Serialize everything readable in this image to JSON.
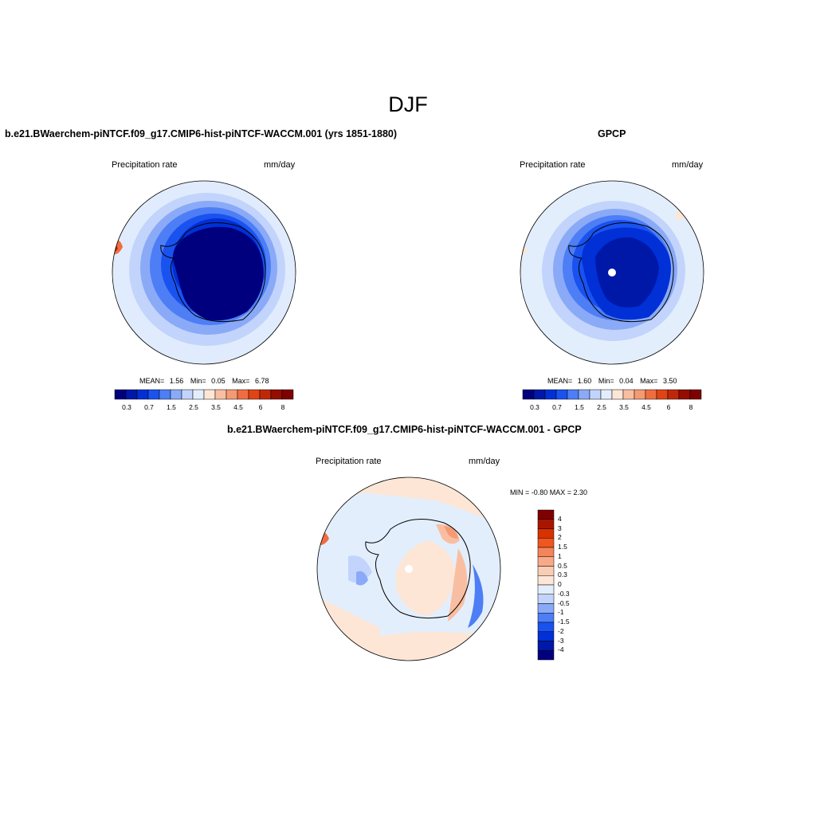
{
  "title": "DJF",
  "panels": {
    "model": {
      "title": "b.e21.BWaerchem-piNTCF.f09_g17.CMIP6-hist-piNTCF-WACCM.001 (yrs 1851-1880)",
      "variable": "Precipitation rate",
      "units": "mm/day",
      "stats_mean_label": "MEAN=",
      "stats_mean": "1.56",
      "stats_min_label": "Min=",
      "stats_min": "0.05",
      "stats_max_label": "Max=",
      "stats_max": "6.78"
    },
    "obs": {
      "title": "GPCP",
      "variable": "Precipitation rate",
      "units": "mm/day",
      "stats_mean_label": "MEAN=",
      "stats_mean": "1.60",
      "stats_min_label": "Min=",
      "stats_min": "0.04",
      "stats_max_label": "Max=",
      "stats_max": "3.50"
    },
    "diff": {
      "title": "b.e21.BWaerchem-piNTCF.f09_g17.CMIP6-hist-piNTCF-WACCM.001 - GPCP",
      "variable": "Precipitation rate",
      "units": "mm/day",
      "minmax": "MIN =  -0.80 MAX =   2.30"
    }
  },
  "colorbar_horizontal": {
    "colors": [
      "#00007f",
      "#0018a8",
      "#0030d6",
      "#1a52f0",
      "#4d7ef5",
      "#8aaaf8",
      "#c2d4fb",
      "#e3eefd",
      "#fde6d6",
      "#f9bea1",
      "#f59a73",
      "#f06d40",
      "#e04414",
      "#c02708",
      "#950d00",
      "#7f0000"
    ],
    "tick_labels": [
      "0.3",
      "0.7",
      "1.5",
      "2.5",
      "3.5",
      "4.5",
      "6",
      "8"
    ]
  },
  "colorbar_vertical": {
    "colors_top_to_bottom": [
      "#7f0000",
      "#a81600",
      "#d83200",
      "#f0561e",
      "#f4845a",
      "#f8aa88",
      "#fbccb4",
      "#fde6d6",
      "#e3eefd",
      "#c2d4fb",
      "#8aaaf8",
      "#4d7ef5",
      "#1a52f0",
      "#0030d6",
      "#0018a8",
      "#00007f"
    ],
    "tick_labels": [
      "4",
      "3",
      "2",
      "1.5",
      "1",
      "0.5",
      "0.3",
      "0",
      "-0.3",
      "-0.5",
      "-1",
      "-1.5",
      "-2",
      "-3",
      "-4"
    ]
  },
  "map_colors": {
    "ocean_light": "#e3eefd",
    "band1": "#c2d4fb",
    "band2": "#8aaaf8",
    "band3": "#4d7ef5",
    "band4": "#1a52f0",
    "band5": "#0030d6",
    "band6": "#0018a8",
    "core": "#00007f",
    "warm1": "#fde6d6",
    "warm2": "#f9bea1",
    "warm3": "#f06d40"
  }
}
